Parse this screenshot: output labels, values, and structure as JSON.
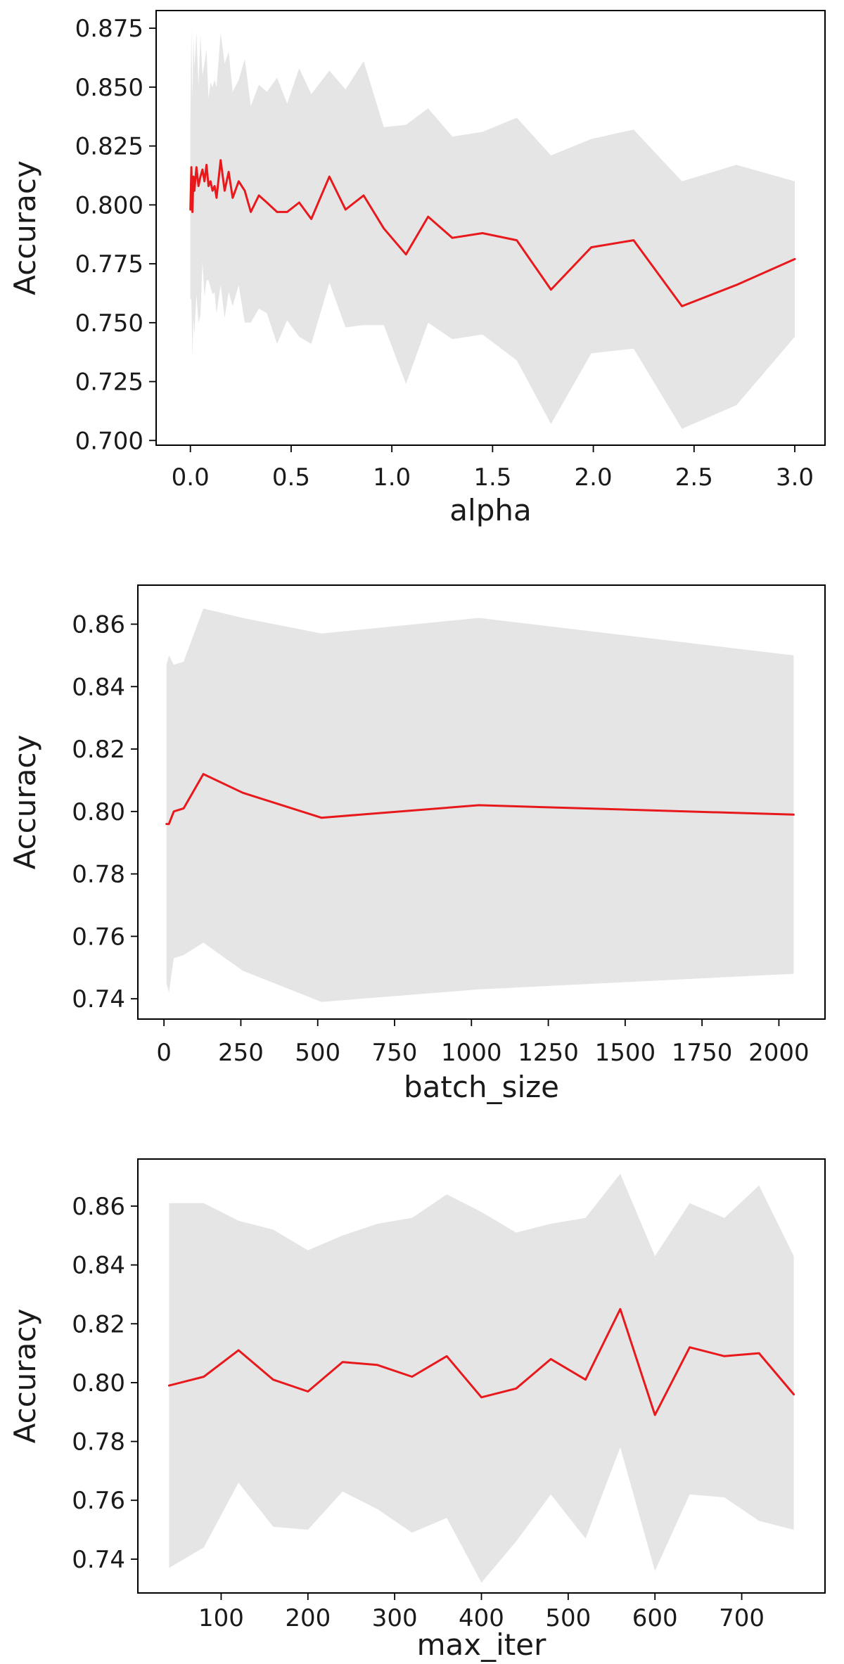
{
  "chart_data": [
    {
      "type": "line",
      "xlabel": "alpha",
      "ylabel": "Accuracy",
      "xlim": [
        -0.17,
        3.15
      ],
      "ylim": [
        0.698,
        0.8825
      ],
      "xticks": [
        0.0,
        0.5,
        1.0,
        1.5,
        2.0,
        2.5,
        3.0
      ],
      "xtick_labels": [
        "0.0",
        "0.5",
        "1.0",
        "1.5",
        "2.0",
        "2.5",
        "3.0"
      ],
      "yticks": [
        0.7,
        0.725,
        0.75,
        0.775,
        0.8,
        0.825,
        0.85,
        0.875
      ],
      "ytick_labels": [
        "0.700",
        "0.725",
        "0.750",
        "0.775",
        "0.800",
        "0.825",
        "0.850",
        "0.875"
      ],
      "grid": false,
      "colors": {
        "line": "#e8191c",
        "band": "#e5e5e5"
      },
      "series": [
        {
          "x": [
            0.0,
            0.005,
            0.01,
            0.015,
            0.02,
            0.03,
            0.04,
            0.05,
            0.06,
            0.07,
            0.08,
            0.09,
            0.1,
            0.11,
            0.12,
            0.13,
            0.15,
            0.17,
            0.19,
            0.21,
            0.24,
            0.27,
            0.3,
            0.34,
            0.38,
            0.43,
            0.48,
            0.54,
            0.6,
            0.69,
            0.77,
            0.86,
            0.96,
            1.07,
            1.18,
            1.3,
            1.45,
            1.62,
            1.79,
            1.99,
            2.2,
            2.44,
            2.71,
            3.0
          ],
          "y": [
            0.798,
            0.816,
            0.797,
            0.812,
            0.806,
            0.816,
            0.808,
            0.812,
            0.815,
            0.81,
            0.817,
            0.808,
            0.81,
            0.806,
            0.808,
            0.803,
            0.819,
            0.806,
            0.814,
            0.803,
            0.81,
            0.806,
            0.797,
            0.804,
            0.801,
            0.797,
            0.797,
            0.801,
            0.794,
            0.812,
            0.798,
            0.804,
            0.79,
            0.779,
            0.795,
            0.786,
            0.788,
            0.785,
            0.764,
            0.782,
            0.785,
            0.757,
            0.766,
            0.777
          ],
          "upper": [
            0.835,
            0.875,
            0.845,
            0.872,
            0.858,
            0.873,
            0.85,
            0.872,
            0.855,
            0.86,
            0.866,
            0.845,
            0.852,
            0.85,
            0.853,
            0.85,
            0.873,
            0.86,
            0.865,
            0.848,
            0.853,
            0.862,
            0.842,
            0.851,
            0.848,
            0.854,
            0.843,
            0.858,
            0.847,
            0.857,
            0.849,
            0.861,
            0.833,
            0.834,
            0.841,
            0.829,
            0.831,
            0.837,
            0.821,
            0.828,
            0.832,
            0.81,
            0.817,
            0.81
          ],
          "lower": [
            0.76,
            0.76,
            0.735,
            0.752,
            0.745,
            0.762,
            0.75,
            0.753,
            0.776,
            0.761,
            0.768,
            0.768,
            0.765,
            0.762,
            0.763,
            0.754,
            0.766,
            0.752,
            0.763,
            0.757,
            0.766,
            0.75,
            0.75,
            0.756,
            0.754,
            0.741,
            0.751,
            0.744,
            0.741,
            0.767,
            0.748,
            0.749,
            0.749,
            0.724,
            0.75,
            0.743,
            0.745,
            0.734,
            0.707,
            0.737,
            0.739,
            0.705,
            0.715,
            0.744
          ]
        }
      ]
    },
    {
      "type": "line",
      "xlabel": "batch_size",
      "ylabel": "Accuracy",
      "xlim": [
        -85,
        2150
      ],
      "ylim": [
        0.7335,
        0.8725
      ],
      "xticks": [
        0,
        250,
        500,
        750,
        1000,
        1250,
        1500,
        1750,
        2000
      ],
      "xtick_labels": [
        "0",
        "250",
        "500",
        "750",
        "1000",
        "1250",
        "1500",
        "1750",
        "2000"
      ],
      "yticks": [
        0.74,
        0.76,
        0.78,
        0.8,
        0.82,
        0.84,
        0.86
      ],
      "ytick_labels": [
        "0.74",
        "0.76",
        "0.78",
        "0.80",
        "0.82",
        "0.84",
        "0.86"
      ],
      "grid": false,
      "colors": {
        "line": "#e8191c",
        "band": "#e5e5e5"
      },
      "series": [
        {
          "x": [
            8,
            16,
            32,
            64,
            128,
            256,
            512,
            1024,
            2048
          ],
          "y": [
            0.796,
            0.796,
            0.8,
            0.801,
            0.812,
            0.806,
            0.798,
            0.802,
            0.799
          ],
          "upper": [
            0.847,
            0.85,
            0.847,
            0.848,
            0.865,
            0.862,
            0.857,
            0.862,
            0.85
          ],
          "lower": [
            0.745,
            0.742,
            0.753,
            0.754,
            0.758,
            0.749,
            0.739,
            0.743,
            0.748
          ]
        }
      ]
    },
    {
      "type": "line",
      "xlabel": "max_iter",
      "ylabel": "Accuracy",
      "xlim": [
        4,
        796
      ],
      "ylim": [
        0.7285,
        0.876
      ],
      "xticks": [
        100,
        200,
        300,
        400,
        500,
        600,
        700
      ],
      "xtick_labels": [
        "100",
        "200",
        "300",
        "400",
        "500",
        "600",
        "700"
      ],
      "yticks": [
        0.74,
        0.76,
        0.78,
        0.8,
        0.82,
        0.84,
        0.86
      ],
      "ytick_labels": [
        "0.74",
        "0.76",
        "0.78",
        "0.80",
        "0.82",
        "0.84",
        "0.86"
      ],
      "grid": false,
      "colors": {
        "line": "#e8191c",
        "band": "#e5e5e5"
      },
      "series": [
        {
          "x": [
            40,
            80,
            120,
            160,
            200,
            240,
            280,
            320,
            360,
            400,
            440,
            480,
            520,
            560,
            600,
            640,
            680,
            720,
            760
          ],
          "y": [
            0.799,
            0.802,
            0.811,
            0.801,
            0.797,
            0.807,
            0.806,
            0.802,
            0.809,
            0.795,
            0.798,
            0.808,
            0.801,
            0.825,
            0.789,
            0.812,
            0.809,
            0.81,
            0.796
          ],
          "upper": [
            0.861,
            0.861,
            0.855,
            0.852,
            0.845,
            0.85,
            0.854,
            0.856,
            0.864,
            0.858,
            0.851,
            0.854,
            0.856,
            0.871,
            0.843,
            0.861,
            0.856,
            0.867,
            0.843
          ],
          "lower": [
            0.737,
            0.744,
            0.766,
            0.751,
            0.75,
            0.763,
            0.757,
            0.749,
            0.754,
            0.732,
            0.746,
            0.762,
            0.747,
            0.778,
            0.736,
            0.762,
            0.761,
            0.753,
            0.75
          ]
        }
      ]
    }
  ]
}
